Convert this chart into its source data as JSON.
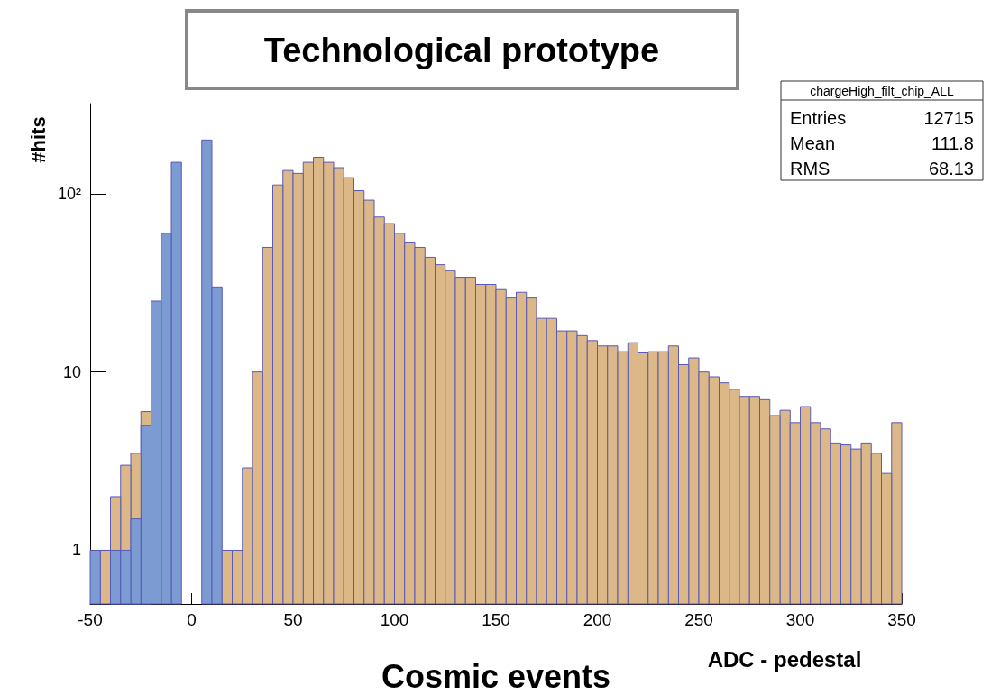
{
  "chart_data": {
    "type": "histogram",
    "title": "Technological prototype",
    "xlabel": "ADC - pedestal",
    "ylabel": "#hits",
    "annotations": [
      "chargeHigh_filt_chip_ALL",
      "Entries",
      "12715",
      "Mean",
      "111.8",
      "RMS",
      "68.13",
      "Cosmic events"
    ],
    "bins": [
      -50,
      -45,
      -40,
      -35,
      -30,
      -25,
      -20,
      -15,
      -10,
      -5,
      0,
      5,
      10,
      15,
      20,
      25,
      30,
      35,
      40,
      45,
      50,
      55,
      60,
      65,
      70,
      75,
      80,
      85,
      90,
      95,
      100,
      105,
      110,
      115,
      120,
      125,
      130,
      135,
      140,
      145,
      150,
      155,
      160,
      165,
      170,
      175,
      180,
      185,
      190,
      195,
      200,
      205,
      210,
      215,
      220,
      225,
      230,
      235,
      240,
      245,
      250,
      255,
      260,
      265,
      270,
      275,
      280,
      285,
      290,
      295,
      300,
      305,
      310,
      315,
      320,
      325,
      330,
      335,
      340,
      345,
      350
    ],
    "series": [
      {
        "color": "#dcb888",
        "values": [
          null,
          1,
          2,
          3,
          3.5,
          6,
          null,
          null,
          null,
          null,
          null,
          null,
          null,
          1,
          1,
          2.9,
          10,
          50,
          112,
          135,
          130,
          150,
          160,
          150,
          140,
          123,
          104,
          92,
          74,
          68,
          60,
          53,
          50,
          44,
          40,
          37,
          34,
          34,
          31,
          31,
          29,
          26,
          28,
          26,
          20,
          20,
          17,
          17,
          16,
          15,
          14,
          14,
          13,
          14.6,
          12.8,
          13,
          13,
          14,
          11,
          12,
          10,
          9.4,
          8.7,
          8,
          7.3,
          7.3,
          7,
          5.7,
          6.1,
          5.2,
          6.4,
          5.2,
          4.8,
          4,
          3.9,
          3.7,
          4,
          3.5,
          2.7,
          5.2
        ]
      },
      {
        "color": "#7b9bd2",
        "values": [
          1,
          null,
          1,
          1,
          1.5,
          5,
          25,
          60,
          150,
          null,
          null,
          200,
          30,
          null,
          null,
          null,
          null,
          null,
          null,
          null,
          null,
          null,
          null,
          null,
          null,
          null,
          null,
          null,
          null,
          null,
          null,
          null,
          null,
          null,
          null,
          null,
          null,
          null,
          null,
          null,
          null,
          null,
          null,
          null,
          null,
          null,
          null,
          null,
          null,
          null,
          null,
          null,
          null,
          null,
          null,
          null,
          null,
          null,
          null,
          null,
          null,
          null,
          null,
          null,
          null,
          null,
          null,
          null,
          null,
          null,
          null,
          null,
          null,
          null,
          null,
          null,
          null,
          null,
          null,
          null
        ]
      }
    ],
    "xlim": [
      -50,
      350
    ],
    "xticks": [
      -50,
      0,
      50,
      100,
      150,
      200,
      250,
      300,
      350
    ],
    "ylim": [
      0.5,
      320
    ],
    "yticks": [
      1,
      10,
      {
        "value": 100,
        "label": "10²"
      }
    ],
    "log": "y",
    "grid": false
  }
}
